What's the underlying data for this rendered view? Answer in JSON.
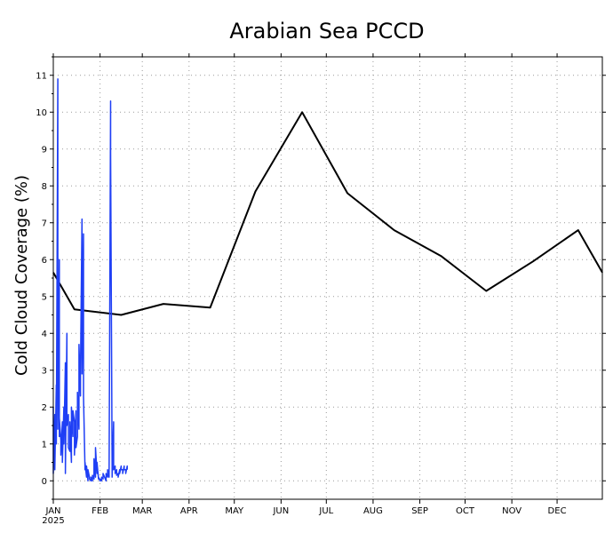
{
  "chart_data": {
    "type": "line",
    "title": "Arabian Sea PCCD",
    "xlabel": "",
    "ylabel": "Cold Cloud Coverage (%)",
    "xlim": [
      "2025-01-01",
      "2025-12-31"
    ],
    "ylim": [
      -0.5,
      11.5
    ],
    "yticks": [
      0,
      1,
      2,
      3,
      4,
      5,
      6,
      7,
      8,
      9,
      10,
      11
    ],
    "xticks": [
      {
        "label": "JAN",
        "date": "2025-01-01"
      },
      {
        "label": "FEB",
        "date": "2025-02-01"
      },
      {
        "label": "MAR",
        "date": "2025-03-01"
      },
      {
        "label": "APR",
        "date": "2025-04-01"
      },
      {
        "label": "MAY",
        "date": "2025-05-01"
      },
      {
        "label": "JUN",
        "date": "2025-06-01"
      },
      {
        "label": "JUL",
        "date": "2025-07-01"
      },
      {
        "label": "AUG",
        "date": "2025-08-01"
      },
      {
        "label": "SEP",
        "date": "2025-09-01"
      },
      {
        "label": "OCT",
        "date": "2025-10-01"
      },
      {
        "label": "NOV",
        "date": "2025-11-01"
      },
      {
        "label": "DEC",
        "date": "2025-12-01"
      }
    ],
    "year_label": "2025",
    "grid": true,
    "series": [
      {
        "color": "#000000",
        "x": [
          "2025-01-01",
          "2025-01-15",
          "2025-02-15",
          "2025-03-15",
          "2025-04-15",
          "2025-05-15",
          "2025-06-15",
          "2025-07-15",
          "2025-08-15",
          "2025-09-15",
          "2025-10-15",
          "2025-11-15",
          "2025-12-15",
          "2025-12-31"
        ],
        "y": [
          5.65,
          4.65,
          4.5,
          4.8,
          4.7,
          7.85,
          10.0,
          7.8,
          6.8,
          6.1,
          5.15,
          5.95,
          6.8,
          5.65
        ]
      },
      {
        "color": "#1f3ff5",
        "x": [
          "2025-01-01",
          "2025-01-01",
          "2025-01-02",
          "2025-01-02",
          "2025-01-03",
          "2025-01-03",
          "2025-01-04",
          "2025-01-04",
          "2025-01-05",
          "2025-01-05",
          "2025-01-05",
          "2025-01-06",
          "2025-01-06",
          "2025-01-07",
          "2025-01-07",
          "2025-01-08",
          "2025-01-08",
          "2025-01-09",
          "2025-01-09",
          "2025-01-10",
          "2025-01-10",
          "2025-01-11",
          "2025-01-11",
          "2025-01-12",
          "2025-01-12",
          "2025-01-13",
          "2025-01-13",
          "2025-01-14",
          "2025-01-14",
          "2025-01-15",
          "2025-01-15",
          "2025-01-16",
          "2025-01-16",
          "2025-01-17",
          "2025-01-17",
          "2025-01-18",
          "2025-01-18",
          "2025-01-19",
          "2025-01-19",
          "2025-01-20",
          "2025-01-20",
          "2025-01-21",
          "2025-01-21",
          "2025-01-22",
          "2025-01-22",
          "2025-01-23",
          "2025-01-23",
          "2025-01-24",
          "2025-01-24",
          "2025-01-25",
          "2025-01-25",
          "2025-01-26",
          "2025-01-26",
          "2025-01-27",
          "2025-01-27",
          "2025-01-28",
          "2025-01-28",
          "2025-01-29",
          "2025-01-29",
          "2025-01-30",
          "2025-01-30",
          "2025-01-31",
          "2025-01-31",
          "2025-02-01",
          "2025-02-01",
          "2025-02-02",
          "2025-02-02",
          "2025-02-03",
          "2025-02-03",
          "2025-02-04",
          "2025-02-04",
          "2025-02-05",
          "2025-02-05",
          "2025-02-06",
          "2025-02-06",
          "2025-02-07",
          "2025-02-07",
          "2025-02-08",
          "2025-02-08",
          "2025-02-09",
          "2025-02-09",
          "2025-02-10",
          "2025-02-10",
          "2025-02-11",
          "2025-02-11",
          "2025-02-12",
          "2025-02-12",
          "2025-02-13",
          "2025-02-13",
          "2025-02-14",
          "2025-02-14",
          "2025-02-15",
          "2025-02-15",
          "2025-02-16",
          "2025-02-16",
          "2025-02-17",
          "2025-02-17",
          "2025-02-18",
          "2025-02-18",
          "2025-02-19",
          "2025-02-19"
        ],
        "y": [
          2.0,
          0.2,
          1.8,
          0.3,
          2.6,
          1.0,
          10.9,
          1.4,
          6.0,
          1.2,
          1.7,
          1.1,
          0.7,
          1.6,
          0.5,
          2.0,
          1.0,
          3.2,
          0.2,
          4.0,
          1.5,
          1.8,
          0.9,
          0.8,
          1.6,
          0.5,
          2.0,
          1.2,
          1.9,
          1.6,
          0.7,
          1.9,
          0.9,
          1.2,
          2.4,
          1.4,
          3.7,
          2.3,
          3.0,
          7.1,
          2.9,
          6.7,
          2.3,
          0.3,
          0.5,
          0.1,
          0.4,
          0.0,
          0.3,
          0.1,
          0.05,
          0.0,
          0.1,
          0.0,
          0.15,
          0.05,
          0.6,
          0.1,
          0.9,
          0.2,
          0.5,
          0.05,
          0.1,
          0.0,
          0.05,
          0.0,
          0.1,
          0.05,
          0.2,
          0.1,
          0.1,
          0.0,
          0.2,
          0.1,
          0.3,
          0.1,
          0.2,
          10.3,
          8.9,
          0.4,
          0.1,
          1.6,
          0.3,
          0.4,
          0.2,
          0.3,
          0.15,
          0.2,
          0.1,
          0.3,
          0.2,
          0.4,
          0.3,
          0.3,
          0.2,
          0.4,
          0.3,
          0.3,
          0.2,
          0.4,
          0.3
        ]
      }
    ]
  }
}
